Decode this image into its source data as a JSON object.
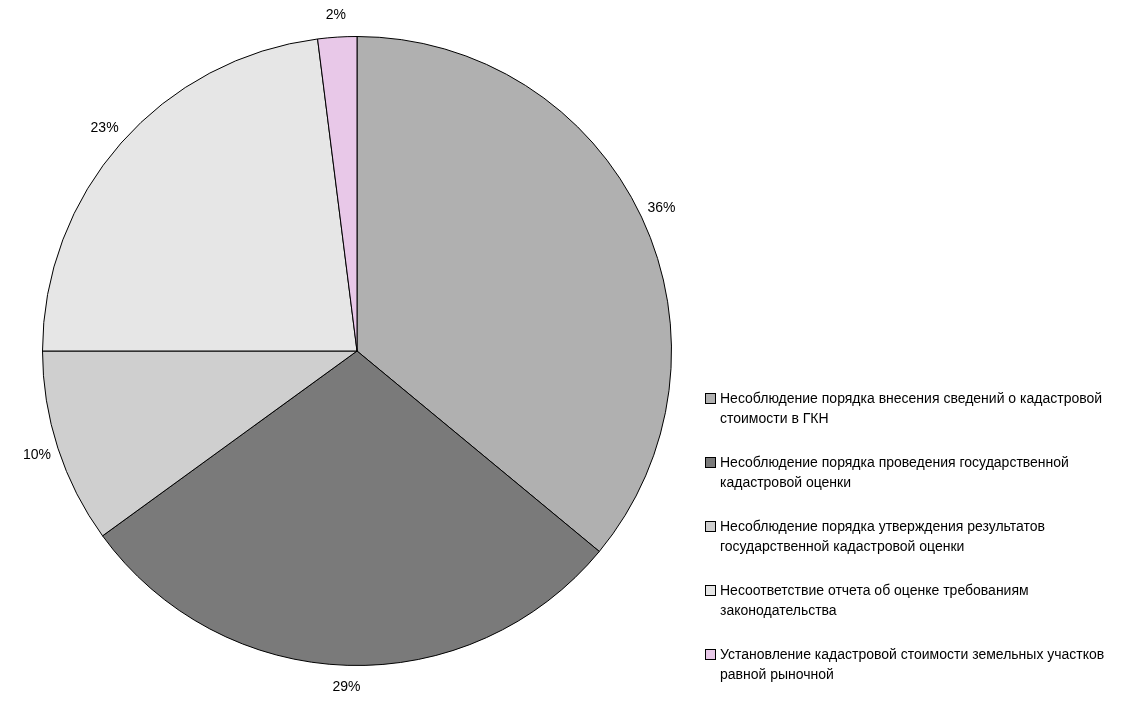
{
  "chart_data": {
    "type": "pie",
    "categories": [
      "Несоблюдение порядка внесения сведений о кадастровой стоимости в ГКН",
      "Несоблюдение порядка проведения государственной кадастровой оценки",
      "Несоблюдение порядка утверждения результатов государственной кадастровой оценки",
      "Несоответствие отчета об оценке требованиям законодательства",
      "Установление кадастровой стоимости земельных участков равной рыночной"
    ],
    "values": [
      36,
      29,
      10,
      23,
      2
    ],
    "colors": [
      "#b0b0b0",
      "#7a7a7a",
      "#cfcfcf",
      "#e6e6e6",
      "#e8c8e8"
    ],
    "value_labels": [
      "36%",
      "29%",
      "10%",
      "23%",
      "2%"
    ],
    "legend": "right"
  }
}
